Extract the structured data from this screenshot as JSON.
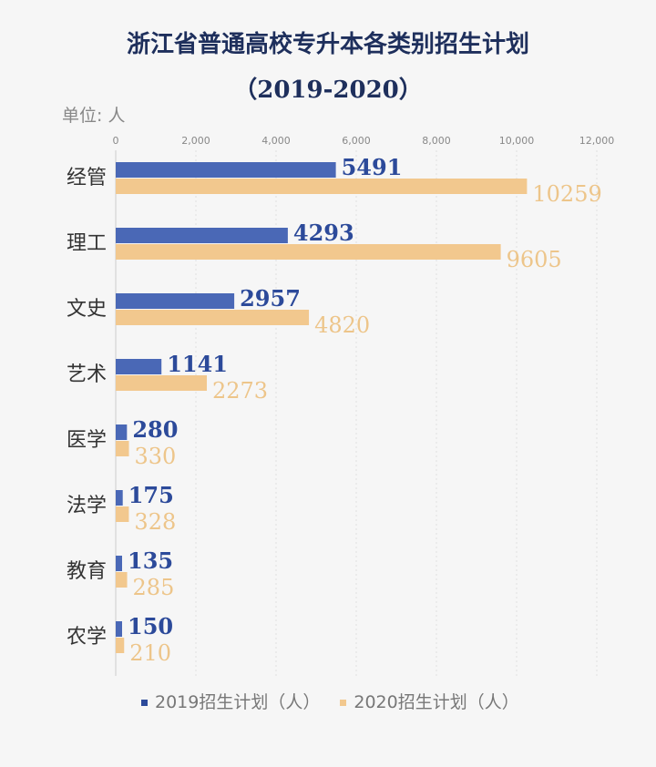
{
  "chart_data": {
    "type": "bar",
    "orientation": "horizontal",
    "title": "浙江省普通高校专升本各类别招生计划",
    "subtitle": "（2019-2020）",
    "unit_label": "单位: 人",
    "categories": [
      "经管",
      "理工",
      "文史",
      "艺术",
      "医学",
      "法学",
      "教育",
      "农学"
    ],
    "series": [
      {
        "name": "2019招生计划（人）",
        "color": "#4a68b6",
        "label_color": "#2c4a9a",
        "values": [
          5491,
          4293,
          2957,
          1141,
          280,
          175,
          135,
          150
        ]
      },
      {
        "name": "2020招生计划（人）",
        "color": "#f2c88e",
        "label_color": "#edc58a",
        "values": [
          10259,
          9605,
          4820,
          2273,
          330,
          328,
          285,
          210
        ]
      }
    ],
    "xlim": [
      0,
      12000
    ],
    "x_ticks": [
      "0",
      "2,000",
      "4,000",
      "6,000",
      "8,000",
      "10,000",
      "12,000"
    ],
    "grid": true,
    "legend": "bottom"
  }
}
